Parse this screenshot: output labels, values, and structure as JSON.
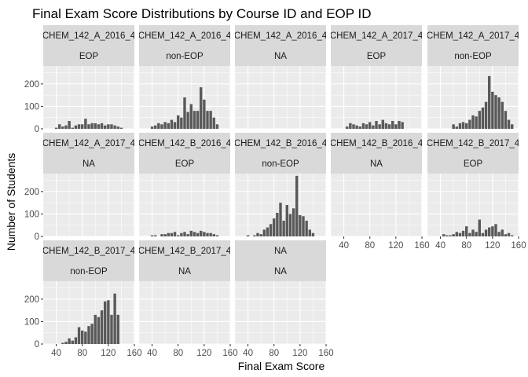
{
  "chart_data": {
    "type": "bar",
    "title": "Final Exam Score Distributions by Course ID and EOP ID",
    "xlabel": "Final Exam Score",
    "ylabel": "Number of Students",
    "xlim": [
      20,
      160
    ],
    "ylim": [
      0,
      280
    ],
    "x_ticks": [
      "40",
      "80",
      "120",
      "160"
    ],
    "y_ticks": [
      "0",
      "100",
      "200"
    ],
    "colors": {
      "bar": "#595959",
      "panel": "#ebebeb",
      "strip": "#d9d9d9",
      "grid": "#ffffff"
    },
    "bin_centers": [
      35,
      40,
      45,
      50,
      55,
      60,
      65,
      70,
      75,
      80,
      85,
      90,
      95,
      100,
      105,
      110,
      115,
      120,
      125,
      130,
      135,
      140,
      145,
      150,
      155
    ],
    "panels": [
      {
        "course": "CHEM_142_A_2016_4",
        "eop": "EOP",
        "counts": [
          0,
          5,
          20,
          10,
          15,
          35,
          5,
          15,
          20,
          20,
          45,
          20,
          25,
          25,
          20,
          25,
          15,
          20,
          20,
          15,
          10,
          5,
          0,
          0,
          0
        ]
      },
      {
        "course": "CHEM_142_A_2016_4",
        "eop": "non-EOP",
        "counts": [
          0,
          10,
          15,
          25,
          20,
          30,
          25,
          40,
          30,
          60,
          50,
          140,
          75,
          110,
          80,
          80,
          185,
          130,
          80,
          80,
          50,
          20,
          0,
          0,
          0
        ]
      },
      {
        "course": "CHEM_142_A_2016_4",
        "eop": "NA",
        "counts": []
      },
      {
        "course": "CHEM_142_A_2017_4",
        "eop": "EOP",
        "counts": [
          0,
          0,
          10,
          25,
          20,
          15,
          10,
          25,
          20,
          30,
          15,
          35,
          20,
          40,
          25,
          20,
          35,
          20,
          35,
          30,
          0,
          0,
          0,
          0,
          0
        ]
      },
      {
        "course": "CHEM_142_A_2017_4",
        "eop": "non-EOP",
        "counts": [
          0,
          0,
          0,
          0,
          0,
          20,
          10,
          25,
          30,
          25,
          40,
          60,
          55,
          80,
          95,
          120,
          235,
          165,
          150,
          140,
          120,
          80,
          40,
          20,
          0
        ]
      },
      {
        "course": "CHEM_142_A_2017_4",
        "eop": "NA",
        "counts": []
      },
      {
        "course": "CHEM_142_B_2016_4",
        "eop": "EOP",
        "counts": [
          0,
          5,
          5,
          0,
          10,
          10,
          15,
          15,
          20,
          5,
          15,
          20,
          10,
          25,
          20,
          15,
          25,
          20,
          15,
          15,
          10,
          5,
          0,
          0,
          0
        ]
      },
      {
        "course": "CHEM_142_B_2016_4",
        "eop": "non-EOP",
        "counts": [
          0,
          5,
          0,
          5,
          15,
          10,
          30,
          40,
          55,
          80,
          105,
          150,
          70,
          140,
          100,
          125,
          270,
          95,
          90,
          70,
          30,
          15,
          0,
          0,
          0
        ]
      },
      {
        "course": "CHEM_142_B_2016_4",
        "eop": "NA",
        "counts": []
      },
      {
        "course": "CHEM_142_B_2017_4",
        "eop": "EOP",
        "counts": [
          0,
          0,
          10,
          5,
          5,
          10,
          20,
          15,
          25,
          45,
          15,
          30,
          20,
          75,
          15,
          30,
          40,
          45,
          55,
          20,
          30,
          10,
          15,
          5,
          0
        ]
      },
      {
        "course": "CHEM_142_B_2017_4",
        "eop": "non-EOP",
        "counts": [
          0,
          0,
          0,
          5,
          10,
          25,
          15,
          30,
          75,
          60,
          55,
          80,
          90,
          130,
          120,
          150,
          190,
          195,
          130,
          225,
          130,
          0,
          0,
          0,
          0
        ]
      },
      {
        "course": "CHEM_142_B_2017_4",
        "eop": "NA",
        "counts": []
      },
      {
        "course": "NA",
        "eop": "NA",
        "counts": []
      }
    ]
  }
}
